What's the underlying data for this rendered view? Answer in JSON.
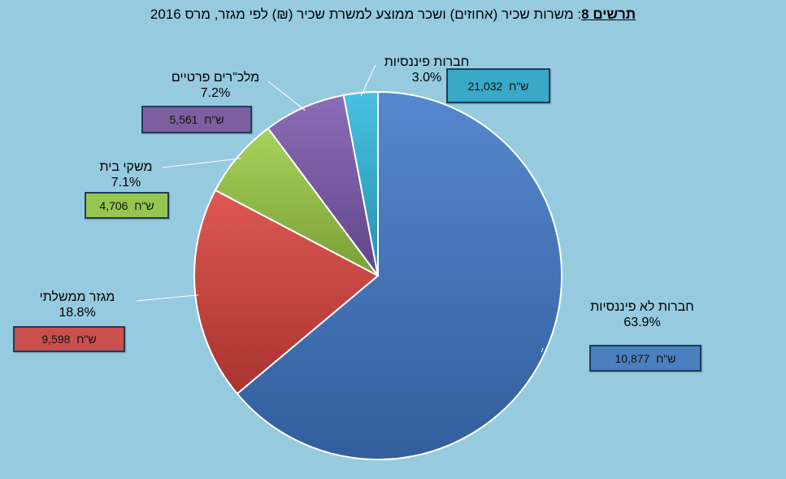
{
  "title": {
    "figure": "תרשים 8",
    "text": ": משרות שכיר (אחוזים) ושכר ממוצע למשרת שכיר (₪) לפי מגזר, מרס  2016"
  },
  "chart_data": {
    "type": "pie",
    "unit_label": "ש\"ח",
    "slices": [
      {
        "name": "חברות לא פיננסיות",
        "percent": 63.9,
        "pct_label": "63.9%",
        "wage": "10,877",
        "color": "#3f78c8",
        "box_color": "#4a7fc0"
      },
      {
        "name": "מגזר ממשלתי",
        "percent": 18.8,
        "pct_label": "18.8%",
        "wage": "9,598",
        "color": "#d9413c",
        "box_color": "#c9504d"
      },
      {
        "name": "משקי בית",
        "percent": 7.1,
        "pct_label": "7.1%",
        "wage": "4,706",
        "color": "#9ccc45",
        "box_color": "#95c651"
      },
      {
        "name": "מלכ\"רים פרטיים",
        "percent": 7.2,
        "pct_label": "7.2%",
        "wage": "5,561",
        "color": "#7c59ae",
        "box_color": "#7d5fa0"
      },
      {
        "name": "חברות פיננסיות",
        "percent": 3.0,
        "pct_label": "3.0%",
        "wage": "21,032",
        "color": "#30b7de",
        "box_color": "#3aa9c8"
      }
    ]
  }
}
